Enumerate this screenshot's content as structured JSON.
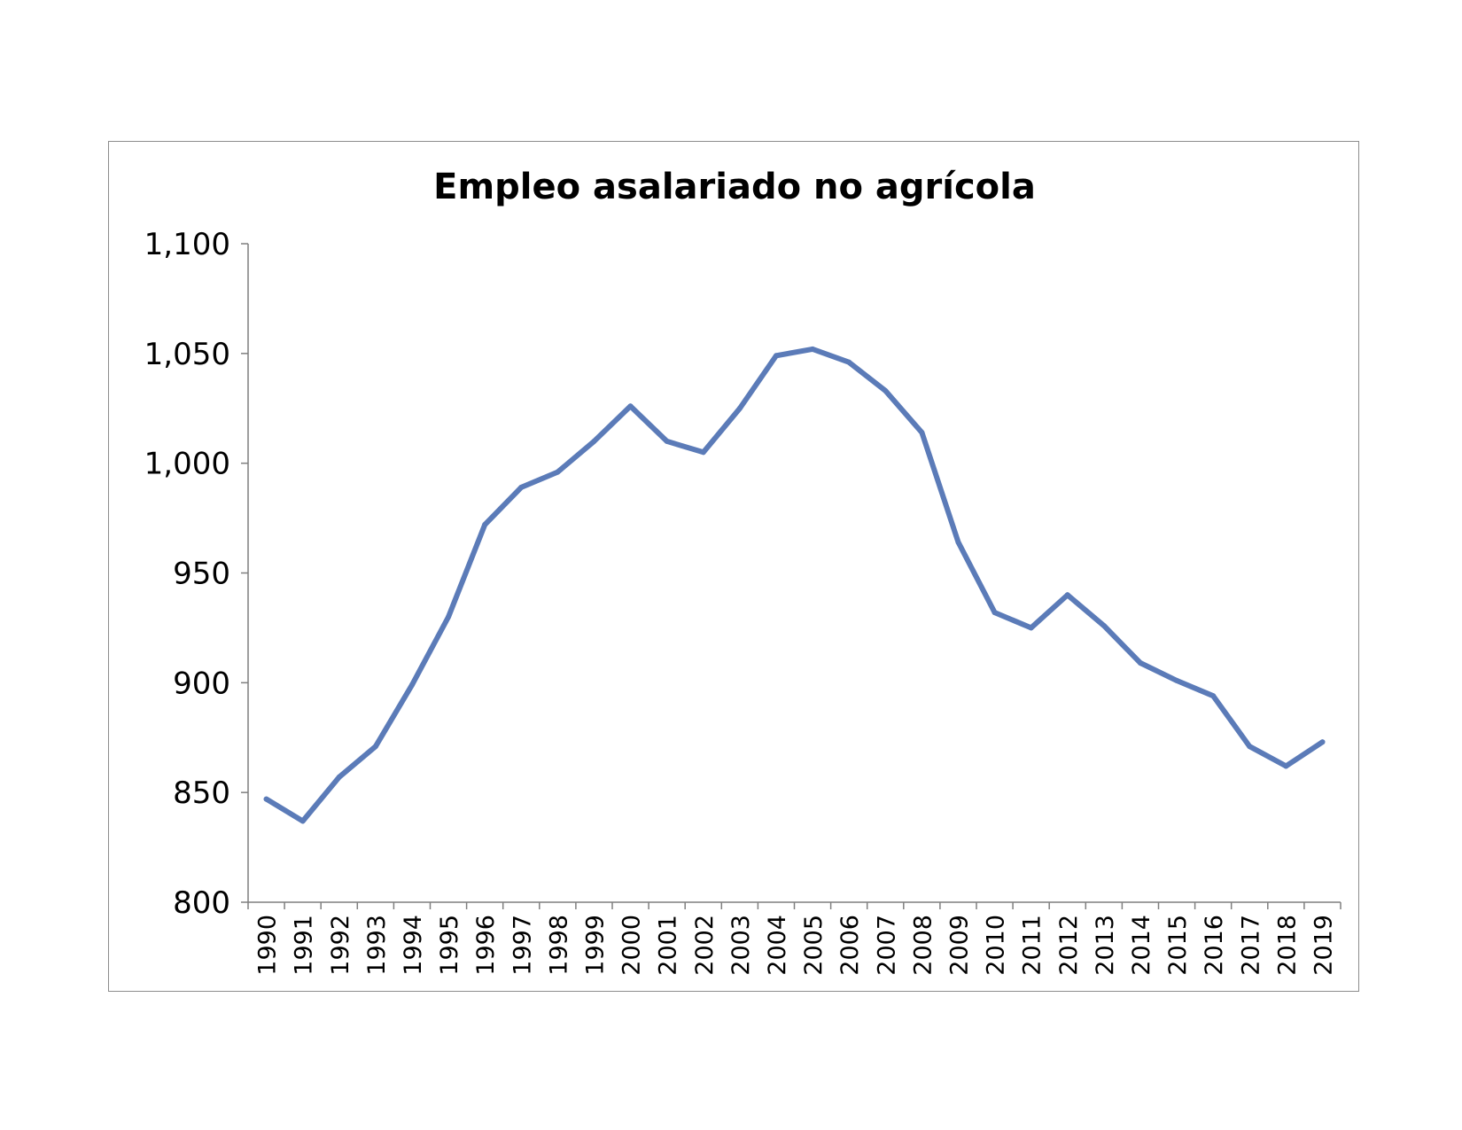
{
  "chart_data": {
    "type": "line",
    "title": "Empleo asalariado no agrícola",
    "xlabel": "",
    "ylabel": "",
    "ylim": [
      800,
      1100
    ],
    "yticks": [
      800,
      850,
      900,
      950,
      1000,
      1050,
      1100
    ],
    "ytick_labels": [
      "800",
      "850",
      "900",
      "950",
      "1,000",
      "1,050",
      "1,100"
    ],
    "categories": [
      "1990",
      "1991",
      "1992",
      "1993",
      "1994",
      "1995",
      "1996",
      "1997",
      "1998",
      "1999",
      "2000",
      "2001",
      "2002",
      "2003",
      "2004",
      "2005",
      "2006",
      "2007",
      "2008",
      "2009",
      "2010",
      "2011",
      "2012",
      "2013",
      "2014",
      "2015",
      "2016",
      "2017",
      "2018",
      "2019"
    ],
    "series": [
      {
        "color": "#5b7bb8",
        "values": [
          847,
          837,
          857,
          871,
          899,
          930,
          972,
          989,
          996,
          1010,
          1026,
          1010,
          1005,
          1025,
          1049,
          1052,
          1046,
          1033,
          1014,
          964,
          932,
          925,
          940,
          926,
          909,
          901,
          894,
          871,
          862,
          873
        ]
      }
    ],
    "grid": false,
    "legend": "none"
  }
}
